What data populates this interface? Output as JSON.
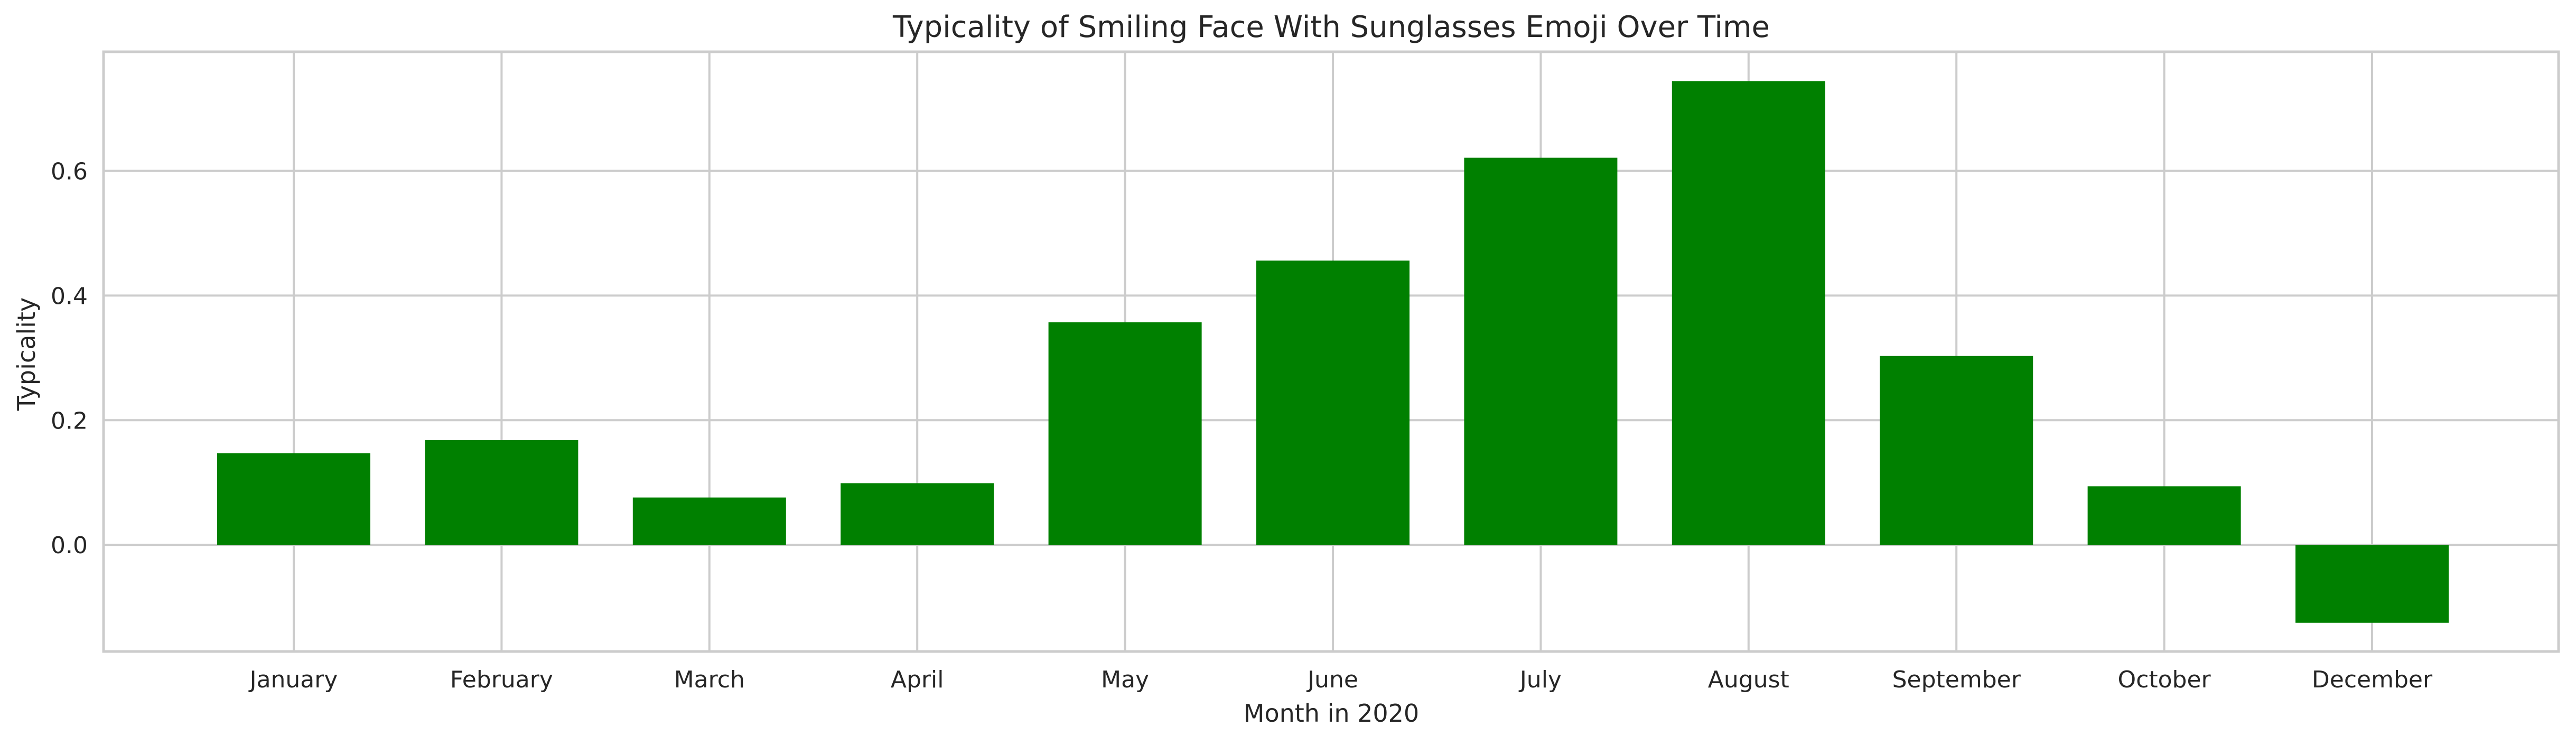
{
  "chart_data": {
    "type": "bar",
    "title": "Typicality of Smiling Face With Sunglasses Emoji Over Time",
    "xlabel": "Month in 2020",
    "ylabel": "Typicality",
    "categories": [
      "January",
      "February",
      "March",
      "April",
      "May",
      "June",
      "July",
      "August",
      "September",
      "October",
      "December"
    ],
    "values": [
      0.147,
      0.168,
      0.076,
      0.099,
      0.357,
      0.456,
      0.621,
      0.744,
      0.303,
      0.094,
      -0.125
    ],
    "ylim": [
      -0.171,
      0.791
    ],
    "yticks": [
      0.0,
      0.2,
      0.4,
      0.6
    ],
    "ytick_labels": [
      "0.0",
      "0.2",
      "0.4",
      "0.6"
    ],
    "grid": true,
    "bar_color": "#008000",
    "grid_color": "#cccccc",
    "frame_color": "#cccccc"
  }
}
